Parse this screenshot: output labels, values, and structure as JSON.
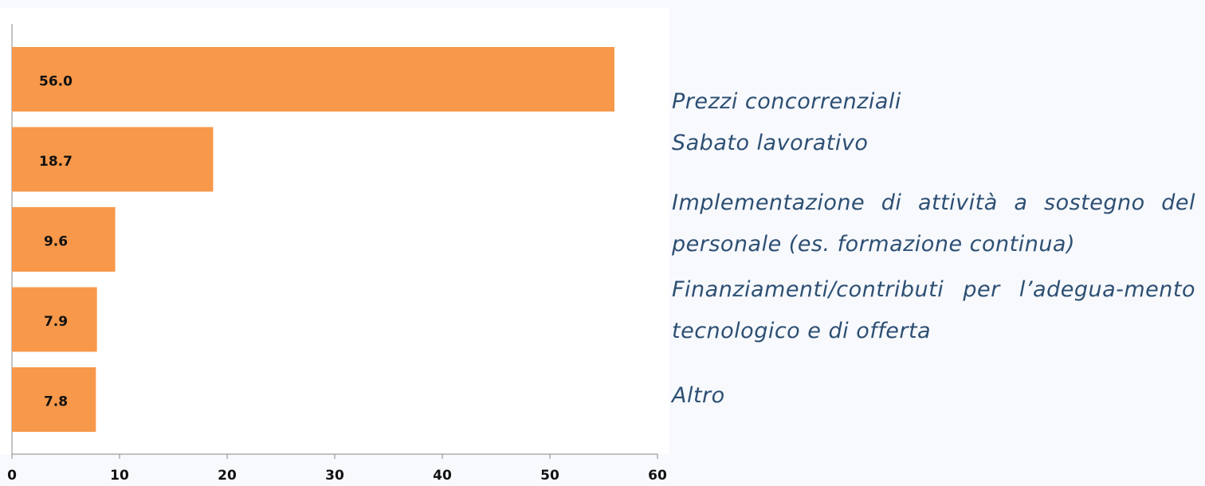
{
  "chart_data": {
    "type": "hbar",
    "categories": [
      "Prezzi concorrenziali",
      "Sabato lavorativo",
      "Implementazione di attività a sostegno del personale (es. formazione continua)",
      "Finanziamenti/contributi per l’adegua-mento tecnologico e di offerta",
      "Altro"
    ],
    "values": [
      56,
      18.7,
      9.6,
      7.9,
      7.8
    ],
    "value_labels": [
      "56.0",
      "18.7",
      "9.6",
      "7.9",
      "7.8"
    ],
    "color": "#f7984a",
    "xlim": [
      0,
      60
    ],
    "xticks": [
      0,
      10,
      20,
      30,
      40,
      50,
      60
    ]
  }
}
